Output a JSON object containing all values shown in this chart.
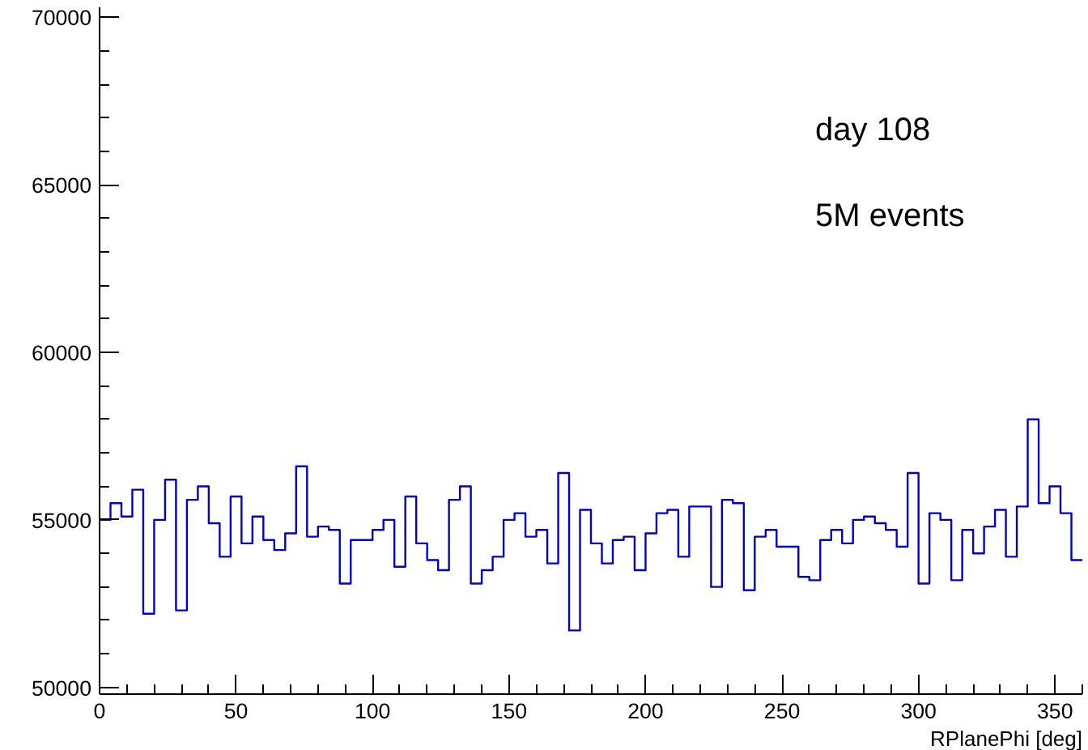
{
  "chart_data": {
    "type": "histogram",
    "xlabel": "RPlanePhi [deg]",
    "annotations": [
      "day 108",
      "5M events"
    ],
    "color": "#0000cc",
    "bins": [
      0,
      4,
      8,
      12,
      16,
      20,
      24,
      28,
      32,
      36,
      40,
      44,
      48,
      52,
      56,
      60,
      64,
      68,
      72,
      76,
      80,
      84,
      88,
      92,
      96,
      100,
      104,
      108,
      112,
      116,
      120,
      124,
      128,
      132,
      136,
      140,
      144,
      148,
      152,
      156,
      160,
      164,
      168,
      172,
      176,
      180,
      184,
      188,
      192,
      196,
      200,
      204,
      208,
      212,
      216,
      220,
      224,
      228,
      232,
      236,
      240,
      244,
      248,
      252,
      256,
      260,
      264,
      268,
      272,
      276,
      280,
      284,
      288,
      292,
      296,
      300,
      304,
      308,
      312,
      316,
      320,
      324,
      328,
      332,
      336,
      340,
      344,
      348,
      352,
      356,
      360
    ],
    "values": [
      55000,
      55500,
      55100,
      55900,
      52200,
      55000,
      56200,
      52300,
      55600,
      56000,
      54900,
      53900,
      55700,
      54300,
      55100,
      54400,
      54100,
      54600,
      56600,
      54500,
      54800,
      54700,
      53100,
      54400,
      54400,
      54700,
      55000,
      53600,
      55700,
      54300,
      53800,
      53500,
      55600,
      56000,
      53100,
      53500,
      53900,
      55000,
      55200,
      54500,
      54700,
      53700,
      56400,
      51700,
      55300,
      54300,
      53700,
      54400,
      54500,
      53500,
      54600,
      55200,
      55300,
      53900,
      55400,
      55400,
      53000,
      55600,
      55500,
      52900,
      54500,
      54700,
      54200,
      54200,
      53300,
      53200,
      54400,
      54700,
      54300,
      55000,
      55100,
      54900,
      54700,
      54200,
      56400,
      53100,
      55200,
      55000,
      53200,
      54700,
      54000,
      54800,
      55300,
      53900,
      55400,
      58000,
      55500,
      56000,
      55200,
      53800
    ],
    "xlim": [
      0,
      360
    ],
    "ylim": [
      49800,
      70300
    ],
    "xticks": [
      0,
      50,
      100,
      150,
      200,
      250,
      300,
      350
    ],
    "yticks": [
      50000,
      55000,
      60000,
      65000,
      70000
    ],
    "grid": false
  }
}
